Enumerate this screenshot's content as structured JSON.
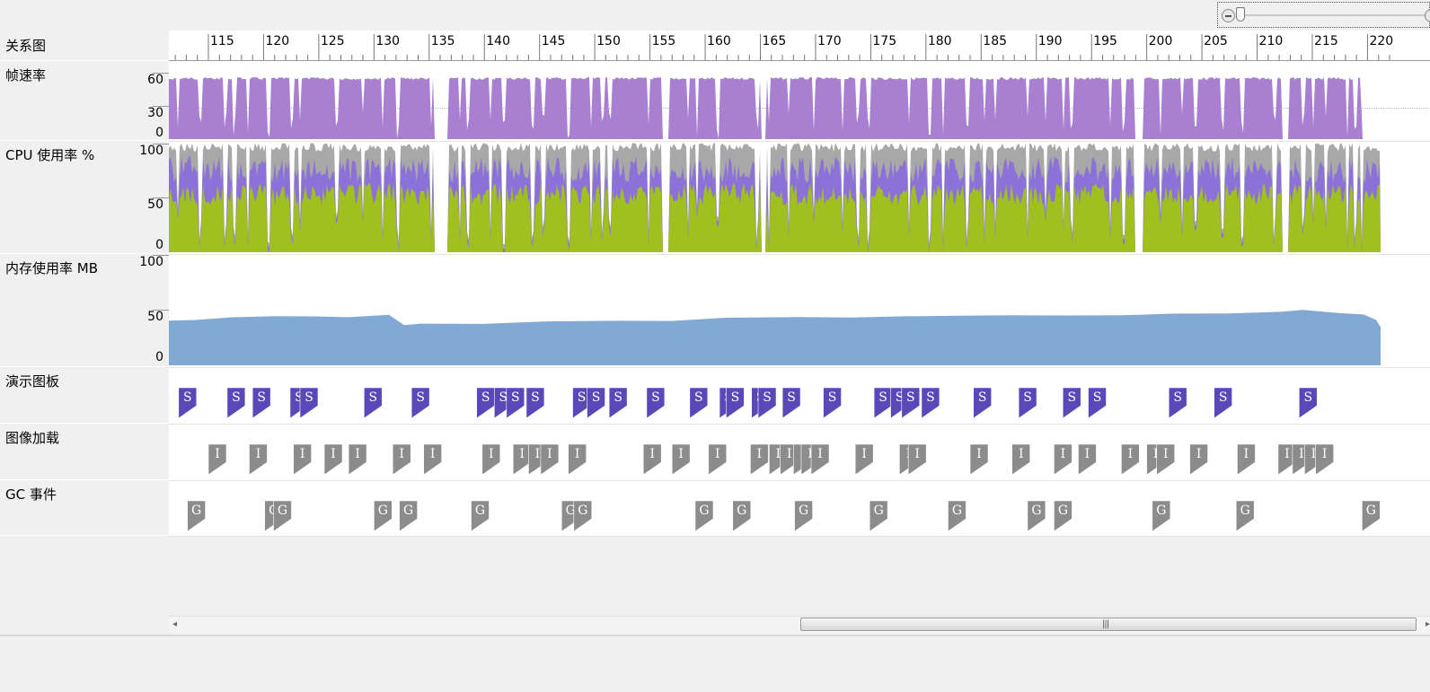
{
  "timeline": {
    "ticks": [
      "115",
      "120",
      "125",
      "130",
      "135",
      "140",
      "145",
      "150",
      "155",
      "160",
      "165",
      "170",
      "175",
      "180",
      "185",
      "190",
      "195",
      "200",
      "205",
      "210",
      "215",
      "220"
    ],
    "first_label_time": 115,
    "last_label_time": 220
  },
  "lanes": {
    "visual_tree": {
      "title": "关系图"
    },
    "frame_rate": {
      "title": "帧速率",
      "ticks": [
        "60",
        "30",
        "0"
      ],
      "color": "#a97fd1"
    },
    "cpu": {
      "title": "CPU 使用率 %",
      "ticks": [
        "100",
        "50",
        "0"
      ],
      "colors": {
        "green": "#a0c020",
        "purple": "#8c72d8",
        "gray": "#a8a8a8"
      }
    },
    "memory": {
      "title": "内存使用率 MB",
      "ticks": [
        "100",
        "50",
        "0"
      ],
      "color": "#82a9d4"
    },
    "storyboards": {
      "title": "演示图板",
      "marker": "S",
      "color": "#5a48b8"
    },
    "image_loads": {
      "title": "图像加载",
      "marker": "I",
      "color": "#8c8c8c"
    },
    "gc_events": {
      "title": "GC 事件",
      "marker": "G",
      "color": "#8c8c8c"
    }
  },
  "events": {
    "storyboards": [
      112.3,
      116.7,
      119.0,
      122.4,
      123.3,
      129.1,
      133.4,
      139.3,
      140.9,
      142.0,
      143.8,
      148.0,
      149.3,
      151.3,
      154.7,
      158.6,
      161.3,
      161.9,
      164.2,
      164.8,
      167.0,
      170.7,
      175.3,
      176.8,
      177.8,
      179.6,
      184.3,
      188.4,
      192.4,
      194.7,
      202.0,
      206.1,
      213.8
    ],
    "image_loads": [
      115.0,
      118.7,
      122.7,
      125.5,
      127.7,
      131.7,
      134.5,
      139.8,
      142.6,
      144.0,
      145.1,
      147.6,
      154.4,
      157.0,
      160.3,
      164.1,
      165.8,
      166.8,
      168.0,
      168.7,
      169.6,
      173.6,
      177.6,
      178.4,
      184.0,
      187.8,
      191.6,
      193.8,
      197.7,
      200.0,
      200.9,
      203.9,
      208.2,
      211.9,
      213.2,
      214.3,
      215.3
    ],
    "gc_events": [
      113.1,
      120.1,
      120.9,
      130.0,
      132.3,
      138.8,
      147.0,
      148.1,
      159.1,
      162.5,
      168.1,
      174.9,
      182.0,
      189.2,
      191.6,
      200.5,
      208.1,
      219.5
    ]
  }
}
